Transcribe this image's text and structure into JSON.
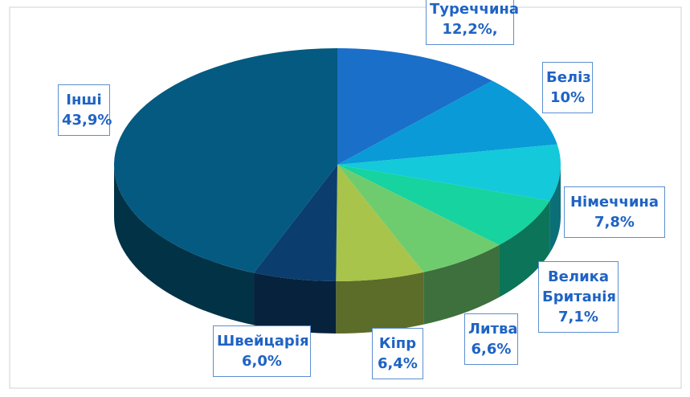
{
  "chart_data": {
    "type": "pie",
    "categories": [
      "Туреччина",
      "Беліз",
      "Німеччина",
      "Велика Британія",
      "Литва",
      "Кіпр",
      "Швейцарія",
      "Інші"
    ],
    "values": [
      12.2,
      10,
      7.8,
      7.1,
      6.6,
      6.4,
      6.0,
      43.9
    ],
    "value_labels": [
      "12,2%,",
      "10%",
      "7,8%",
      "7,1%",
      "6,6%",
      "6,4%",
      "6,0%",
      "43,9%"
    ],
    "colors": [
      "#1a6fc9",
      "#0a9ad8",
      "#14c9d9",
      "#16d3a0",
      "#6fcc6e",
      "#a8c44a",
      "#0b3d6e",
      "#045a80"
    ]
  }
}
